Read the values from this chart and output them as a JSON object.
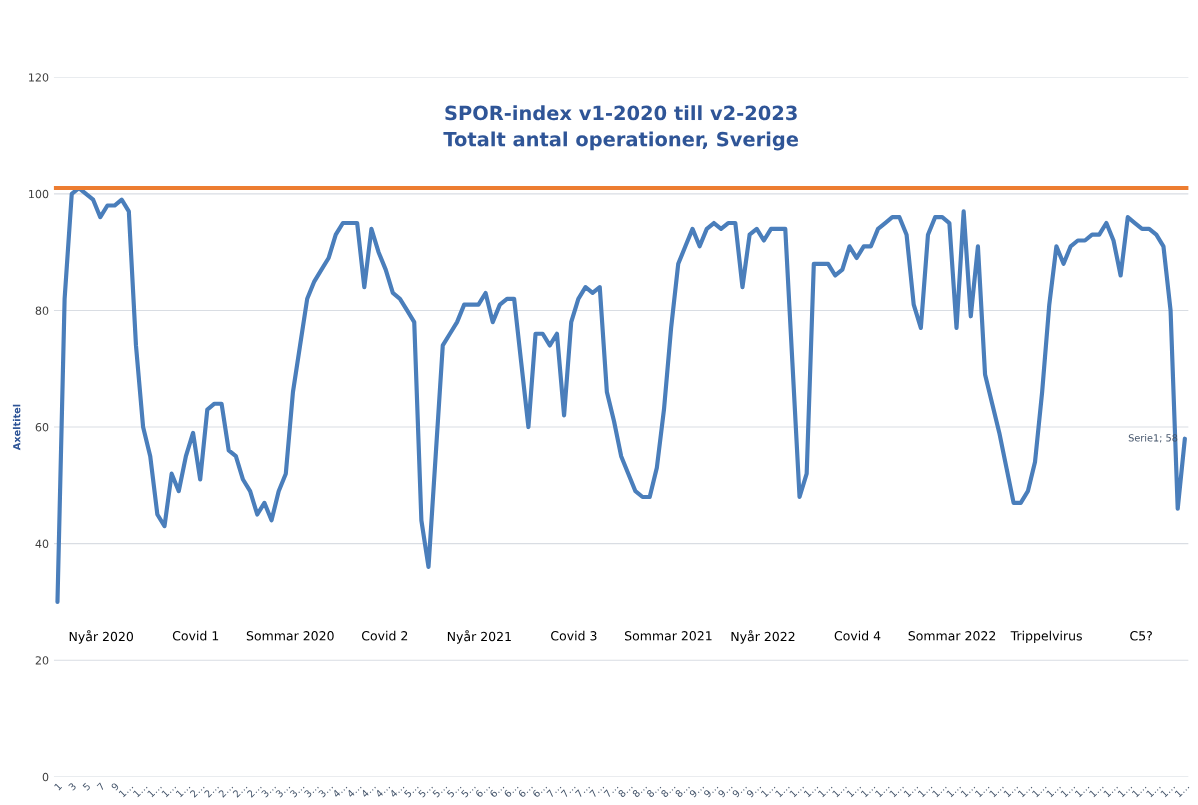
{
  "chart_data": {
    "type": "line",
    "title": "SPOR-index v1-2020 till v2-2023\nTotalt antal operationer, Sverige",
    "ylabel": "Axeltitel",
    "categories": [
      "1",
      null,
      "3",
      null,
      "5",
      null,
      "7",
      null,
      "9",
      null,
      "1…",
      null,
      "1…",
      null,
      "1…",
      null,
      "1…",
      null,
      "1…",
      null,
      "2…",
      null,
      "2…",
      null,
      "2…",
      null,
      "2…",
      null,
      "2…",
      null,
      "3…",
      null,
      "3…",
      null,
      "3…",
      null,
      "3…",
      null,
      "3…",
      null,
      "4…",
      null,
      "4…",
      null,
      "4…",
      null,
      "4…",
      null,
      "4…",
      null,
      "5…",
      null,
      "5…",
      null,
      "5…",
      null,
      "5…",
      null,
      "5…",
      null,
      "6…",
      null,
      "6…",
      null,
      "6…",
      null,
      "6…",
      null,
      "6…",
      null,
      "7…",
      null,
      "7…",
      null,
      "7…",
      null,
      "7…",
      null,
      "7…",
      null,
      "8…",
      null,
      "8…",
      null,
      "8…",
      null,
      "8…",
      null,
      "8…",
      null,
      "9…",
      null,
      "9…",
      null,
      "9…",
      null,
      "9…",
      null,
      "9…",
      null,
      "1…",
      null,
      "1…",
      null,
      "1…",
      null,
      "1…",
      null,
      "1…",
      null,
      "1…",
      null,
      "1…",
      null,
      "1…",
      null,
      "1…",
      null,
      "1…",
      null,
      "1…",
      null,
      "1…",
      null,
      "1…",
      null,
      "1…",
      null,
      "1…",
      null,
      "1…",
      null,
      "1…",
      null,
      "1…",
      null,
      "1…",
      null,
      "1…",
      null,
      "1…",
      null,
      "1…",
      null,
      "1…",
      null,
      "1…",
      null,
      "1…",
      null,
      "1…",
      null,
      "1…",
      null,
      "1…",
      null,
      "1…",
      null,
      "1…"
    ],
    "series": [
      {
        "color": "#4a7ebb",
        "values": [
          30,
          82,
          100,
          101,
          100,
          99,
          96,
          98,
          98,
          99,
          97,
          74,
          60,
          55,
          45,
          43,
          52,
          49,
          55,
          59,
          51,
          63,
          64,
          64,
          56,
          55,
          51,
          49,
          45,
          47,
          44,
          49,
          52,
          66,
          74,
          82,
          85,
          87,
          89,
          93,
          95,
          95,
          95,
          84,
          94,
          90,
          87,
          83,
          82,
          80,
          78,
          44,
          36,
          55,
          74,
          76,
          78,
          81,
          81,
          81,
          83,
          78,
          81,
          82,
          82,
          71,
          60,
          76,
          76,
          74,
          76,
          62,
          78,
          82,
          84,
          83,
          84,
          66,
          61,
          55,
          52,
          49,
          48,
          48,
          53,
          63,
          77,
          88,
          91,
          94,
          91,
          94,
          95,
          94,
          95,
          95,
          84,
          93,
          94,
          92,
          94,
          94,
          94,
          71,
          48,
          52,
          88,
          88,
          88,
          86,
          87,
          91,
          89,
          91,
          91,
          94,
          95,
          96,
          96,
          93,
          81,
          77,
          93,
          96,
          96,
          95,
          77,
          97,
          79,
          91,
          69,
          64,
          59,
          53,
          47,
          47,
          49,
          54,
          66,
          81,
          91,
          88,
          91,
          92,
          92,
          93,
          93,
          95,
          92,
          86,
          96,
          95,
          94,
          94,
          93,
          91,
          80,
          46,
          58
        ],
        "value_labels": [
          null,
          null,
          null,
          null,
          null,
          null,
          null,
          null,
          null,
          null,
          null,
          null,
          null,
          null,
          null,
          null,
          null,
          null,
          null,
          null,
          null,
          null,
          null,
          null,
          null,
          null,
          null,
          null,
          null,
          null,
          null,
          null,
          null,
          null,
          null,
          null,
          null,
          null,
          null,
          null,
          null,
          null,
          null,
          null,
          null,
          null,
          null,
          null,
          null,
          null,
          null,
          null,
          null,
          null,
          null,
          null,
          null,
          null,
          null,
          null,
          null,
          null,
          null,
          null,
          null,
          null,
          null,
          null,
          null,
          null,
          null,
          null,
          null,
          null,
          null,
          null,
          null,
          null,
          null,
          null,
          null,
          null,
          null,
          null,
          null,
          null,
          null,
          null,
          null,
          null,
          null,
          null,
          null,
          null,
          null,
          null,
          null,
          null,
          null,
          null,
          null,
          null,
          null,
          null,
          null,
          null,
          null,
          null,
          null,
          null,
          null,
          null,
          null,
          null,
          null,
          null,
          null,
          null,
          null,
          null,
          null,
          null,
          null,
          null,
          null,
          null,
          null,
          null,
          null,
          null,
          null,
          null,
          null,
          null,
          null,
          null,
          null,
          null,
          null,
          null,
          null,
          null,
          null,
          null,
          null,
          null,
          null,
          null,
          null,
          null,
          null,
          null,
          null,
          null,
          null,
          null,
          null,
          null,
          "Serie1; 58"
        ]
      }
    ],
    "ref_lines": [
      {
        "axis": "y",
        "value": 101,
        "color": "#ed7d31"
      }
    ],
    "ylim": [
      0,
      120
    ],
    "yticks": [
      0,
      20,
      40,
      60,
      80,
      100,
      120
    ],
    "grid": "y",
    "annotations": [
      "Nyår 2020",
      "Covid 1",
      "Sommar 2020",
      "Covid 2",
      "Nyår 2021",
      "Covid 3",
      "Sommar 2021",
      "Nyår 2022",
      "Covid 4",
      "Sommar 2022",
      "Trippelvirus",
      "C5?"
    ]
  }
}
